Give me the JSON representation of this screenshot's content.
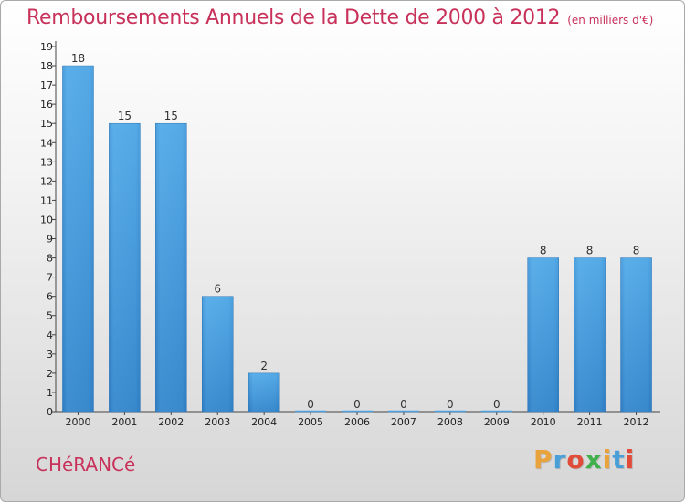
{
  "title": "Remboursements Annuels de la Dette de 2000 à 2012",
  "subtitle": "(en milliers d'€)",
  "commune": "CHéRANCé",
  "logo": {
    "letters": [
      "P",
      "r",
      "o",
      "x",
      "i",
      "t",
      "i"
    ],
    "colors": [
      "#e8a33d",
      "#4a9fd8",
      "#e04b3a",
      "#3fb04a",
      "#e8a33d",
      "#4a9fd8",
      "#e04b3a"
    ]
  },
  "colors": {
    "bar": "#4a9fdf",
    "bar_dark": "#2e7cc2",
    "title": "#c8325a"
  },
  "chart_data": {
    "type": "bar",
    "categories": [
      "2000",
      "2001",
      "2002",
      "2003",
      "2004",
      "2005",
      "2006",
      "2007",
      "2008",
      "2009",
      "2010",
      "2011",
      "2012"
    ],
    "values": [
      18,
      15,
      15,
      6,
      2,
      0,
      0,
      0,
      0,
      0,
      8,
      8,
      8
    ],
    "value_labels": [
      "18",
      "15",
      "15",
      "6",
      "2",
      "0",
      "0",
      "0",
      "0",
      "0",
      "8",
      "8",
      "8"
    ],
    "yticks": [
      "0",
      "1",
      "2",
      "3",
      "4",
      "5",
      "6",
      "7",
      "8",
      "9",
      "10",
      "11",
      "12",
      "13",
      "14",
      "15",
      "16",
      "17",
      "18",
      "19"
    ],
    "ylim": [
      0,
      19
    ],
    "grid": false,
    "title": "Remboursements Annuels de la Dette de 2000 à 2012",
    "xlabel": "",
    "ylabel": ""
  }
}
